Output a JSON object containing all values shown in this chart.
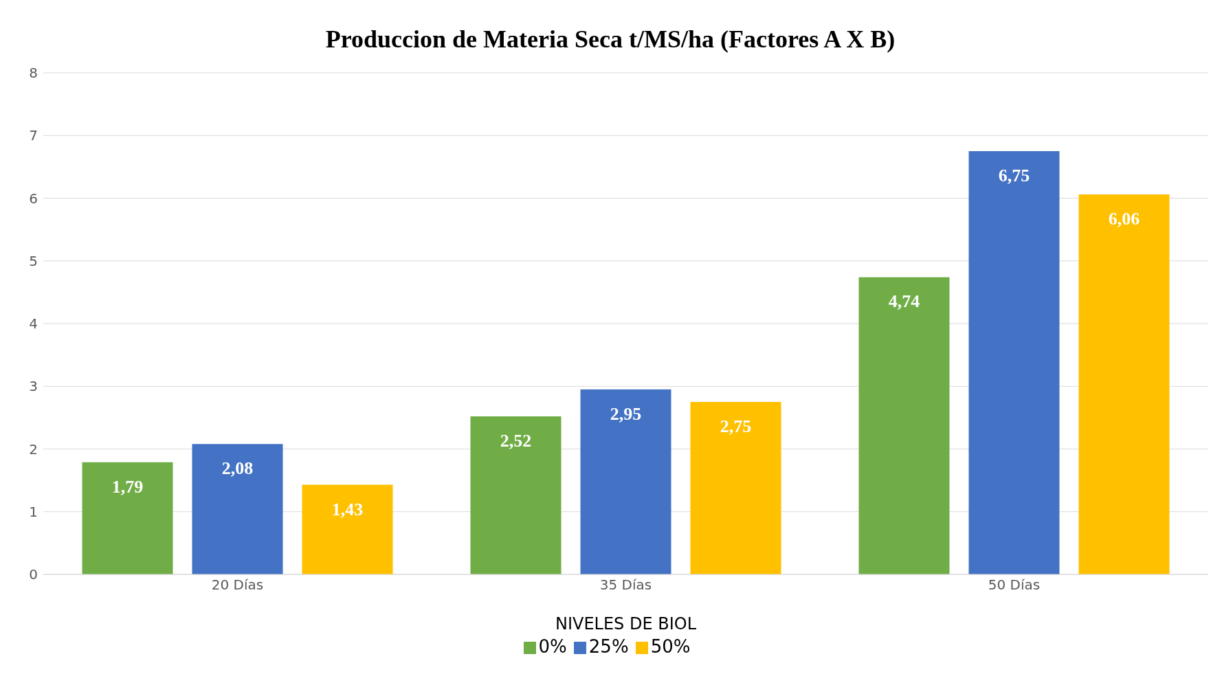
{
  "chart_data": {
    "type": "bar",
    "title": "Produccion de Materia Seca t/MS/ha (Factores A X B)",
    "xlabel": "NIVELES DE BIOL",
    "categories": [
      "20 Días",
      "35 Días",
      "50 Días"
    ],
    "series": [
      {
        "name": "0%",
        "color": "#70ad47",
        "values": [
          1.79,
          2.52,
          4.74
        ],
        "value_labels": [
          "1,79",
          "2,52",
          "4,74"
        ]
      },
      {
        "name": "25%",
        "color": "#4472c4",
        "values": [
          2.08,
          2.95,
          6.75
        ],
        "value_labels": [
          "2,08",
          "2,95",
          "6,75"
        ]
      },
      {
        "name": "50%",
        "color": "#ffc000",
        "values": [
          1.43,
          2.75,
          6.06
        ],
        "value_labels": [
          "1,43",
          "2,75",
          "6,06"
        ]
      }
    ],
    "ylim": [
      0,
      8
    ],
    "yticks": [
      0,
      1,
      2,
      3,
      4,
      5,
      6,
      7,
      8
    ],
    "grid": "y",
    "legend": "bottom"
  }
}
